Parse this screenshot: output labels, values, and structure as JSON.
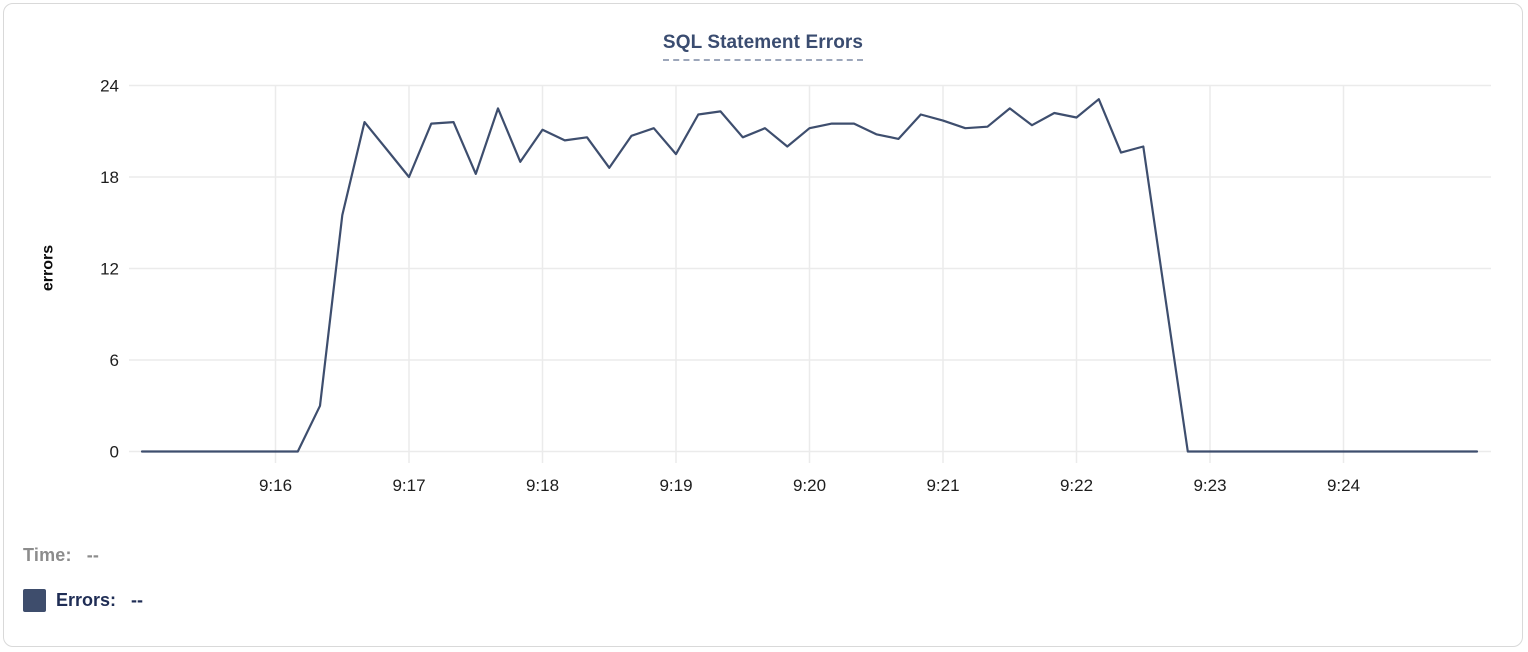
{
  "colors": {
    "line": "#3E4E6E",
    "legend_square": "#3E4D6C",
    "title": "#3A4C70",
    "errors_text": "#1F2D55",
    "muted_text": "#8C8C8C",
    "tick_text": "#1D1D1D",
    "axis_title_text": "#0B0B0B",
    "grid": "#EBEBEB",
    "card_border": "#D9D9D9",
    "title_underline": "#9CA6BA"
  },
  "legend": {
    "time_label": "Time:",
    "time_value": "--",
    "errors_label": "Errors:",
    "errors_value": "--"
  },
  "chart_data": {
    "type": "line",
    "title": "SQL Statement Errors",
    "xlabel": "",
    "ylabel": "errors",
    "grid": true,
    "legend_position": "bottom-left",
    "y_ticks": [
      0,
      6,
      12,
      18,
      24
    ],
    "ylim": [
      0,
      24
    ],
    "x_ticks": [
      "9:16",
      "9:17",
      "9:18",
      "9:19",
      "9:20",
      "9:21",
      "9:22",
      "9:23",
      "9:24"
    ],
    "x_range": [
      "9:15:00",
      "9:25:00"
    ],
    "series": [
      {
        "name": "Errors",
        "x": [
          "9:15:00",
          "9:15:10",
          "9:15:20",
          "9:15:30",
          "9:15:40",
          "9:15:50",
          "9:16:00",
          "9:16:10",
          "9:16:20",
          "9:16:30",
          "9:16:40",
          "9:16:50",
          "9:17:00",
          "9:17:10",
          "9:17:20",
          "9:17:30",
          "9:17:40",
          "9:17:50",
          "9:18:00",
          "9:18:10",
          "9:18:20",
          "9:18:30",
          "9:18:40",
          "9:18:50",
          "9:19:00",
          "9:19:10",
          "9:19:20",
          "9:19:30",
          "9:19:40",
          "9:19:50",
          "9:20:00",
          "9:20:10",
          "9:20:20",
          "9:20:30",
          "9:20:40",
          "9:20:50",
          "9:21:00",
          "9:21:10",
          "9:21:20",
          "9:21:30",
          "9:21:40",
          "9:21:50",
          "9:22:00",
          "9:22:10",
          "9:22:20",
          "9:22:30",
          "9:22:40",
          "9:22:50",
          "9:23:00",
          "9:23:10",
          "9:23:20",
          "9:23:30",
          "9:23:40",
          "9:23:50",
          "9:24:00",
          "9:24:10",
          "9:24:20",
          "9:24:30",
          "9:24:40",
          "9:24:50",
          "9:25:00"
        ],
        "values": [
          0,
          0,
          0,
          0,
          0,
          0,
          0,
          0,
          3,
          15.5,
          21.6,
          19.8,
          18,
          21.5,
          21.6,
          18.2,
          22.5,
          19,
          21.1,
          20.4,
          20.6,
          18.6,
          20.7,
          21.2,
          19.5,
          22.1,
          22.3,
          20.6,
          21.2,
          20,
          21.2,
          21.5,
          21.5,
          20.8,
          20.5,
          22.1,
          21.7,
          21.2,
          21.3,
          22.5,
          21.4,
          22.2,
          21.9,
          23.1,
          19.6,
          20,
          10,
          0,
          0,
          0,
          0,
          0,
          0,
          0,
          0,
          0,
          0,
          0,
          0,
          0,
          0
        ]
      }
    ]
  }
}
